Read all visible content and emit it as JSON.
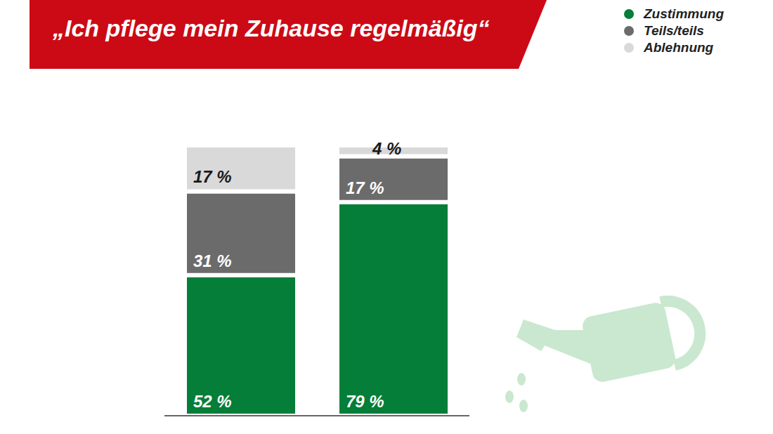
{
  "chart_data": {
    "type": "bar",
    "title": "„Ich pflege mein Zuhause regelmäßig“",
    "categories": [
      null,
      null
    ],
    "stacked": true,
    "data_labels": true,
    "tick_labels": false,
    "legend": "top-right",
    "grid": false,
    "ylim": [
      0,
      100
    ],
    "series": [
      {
        "name": "Zustimmung",
        "color": "#047e38",
        "values": [
          52,
          79
        ],
        "value_labels": [
          "52 %",
          "79 %"
        ]
      },
      {
        "name": "Teils/teils",
        "color": "#6b6b6b",
        "values": [
          31,
          17
        ],
        "value_labels": [
          "31 %",
          "17 %"
        ]
      },
      {
        "name": "Ablehnung",
        "color": "#d9d9d9",
        "values": [
          17,
          4
        ],
        "value_labels": [
          "17 %",
          "4 %"
        ]
      }
    ]
  }
}
